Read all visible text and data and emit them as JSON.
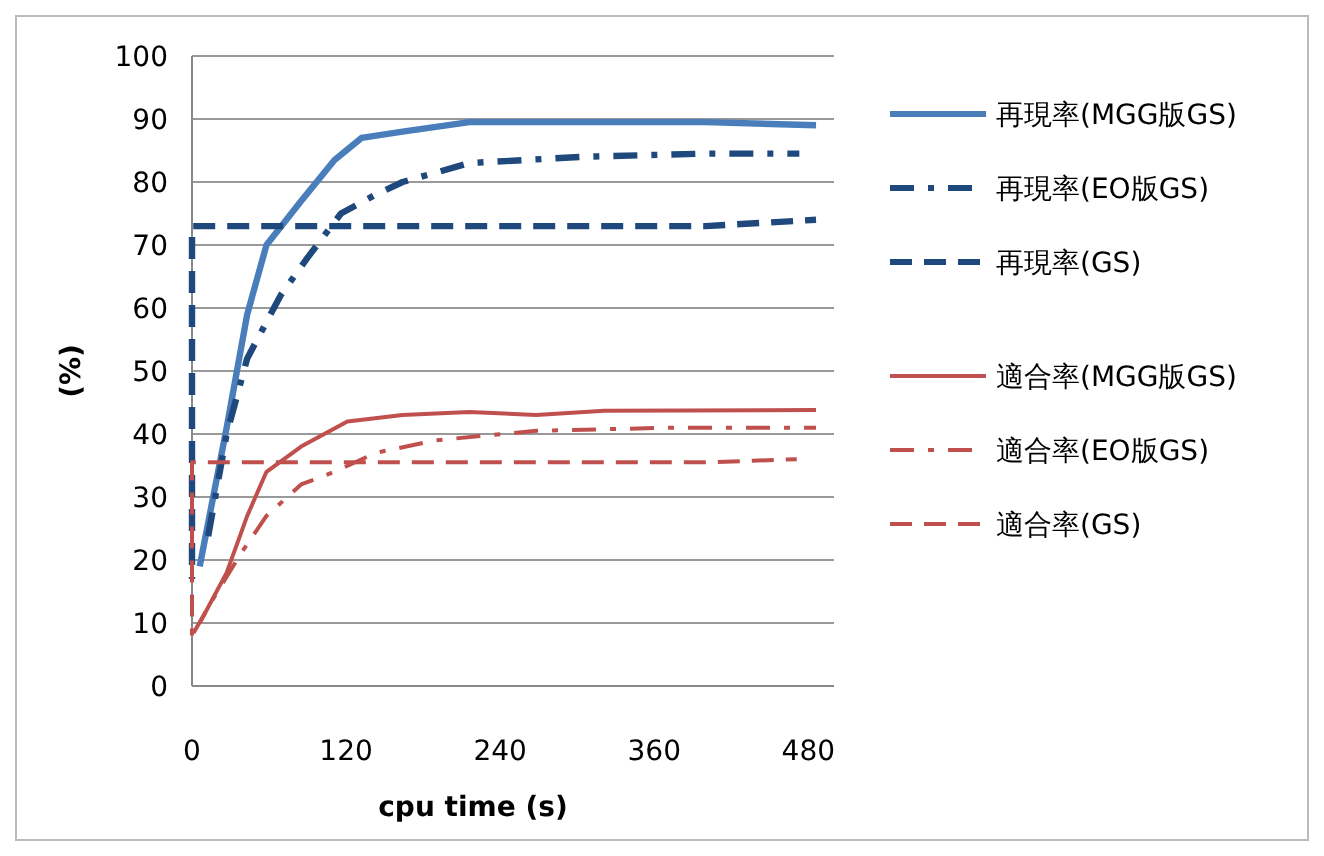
{
  "chart_data": {
    "type": "line",
    "xlabel": "cpu time (s)",
    "ylabel": "(%)",
    "xlim": [
      0,
      500
    ],
    "xticks": [
      0,
      120,
      240,
      360,
      480
    ],
    "ylim": [
      0,
      100
    ],
    "yticks": [
      0,
      10,
      20,
      30,
      40,
      50,
      60,
      70,
      80,
      90,
      100
    ],
    "grid": "y",
    "legend": "right",
    "series": [
      {
        "name": "再現率(MGG版GS)",
        "color": "#4a7ebb",
        "line_style": "solid",
        "x": [
          6,
          27,
          43,
          58,
          85,
          111,
          132,
          164,
          216,
          300,
          400,
          486
        ],
        "values": [
          19,
          41,
          59,
          70,
          77,
          83.5,
          87,
          88,
          89.5,
          89.5,
          89.5,
          89
        ]
      },
      {
        "name": "再現率(EO版GS)",
        "color": "#1f497d",
        "line_style": "dashdot",
        "x": [
          11,
          27,
          43,
          69,
          90,
          116,
          143,
          164,
          216,
          304,
          400,
          473
        ],
        "values": [
          22,
          40,
          52,
          62,
          68,
          75,
          78,
          80,
          83,
          84,
          84.5,
          84.5
        ]
      },
      {
        "name": "再現率(GS)",
        "color": "#1f497d",
        "line_style": "dashed",
        "x": [
          0,
          0,
          30,
          240,
          400,
          486
        ],
        "values": [
          17,
          73,
          73,
          73,
          73,
          74
        ]
      },
      {
        "name": "適合率(MGG版GS)",
        "color": "#c0504d",
        "line_style": "solid",
        "x": [
          6,
          27,
          43,
          58,
          85,
          121,
          164,
          216,
          268,
          321,
          486
        ],
        "values": [
          10,
          18,
          27,
          34,
          38,
          42,
          43,
          43.5,
          43,
          43.7,
          43.8
        ]
      },
      {
        "name": "適合率(EO版GS)",
        "color": "#c0504d",
        "line_style": "dashdot",
        "x": [
          0,
          17,
          38,
          58,
          85,
          111,
          143,
          190,
          268,
          373,
          486
        ],
        "values": [
          8,
          14,
          21,
          27,
          32,
          34,
          37,
          39,
          40.5,
          41,
          41
        ]
      },
      {
        "name": "適合率(GS)",
        "color": "#c0504d",
        "line_style": "dashed",
        "x": [
          0,
          0,
          30,
          240,
          400,
          471
        ],
        "values": [
          8,
          35.5,
          35.5,
          35.5,
          35.5,
          36
        ]
      }
    ]
  }
}
